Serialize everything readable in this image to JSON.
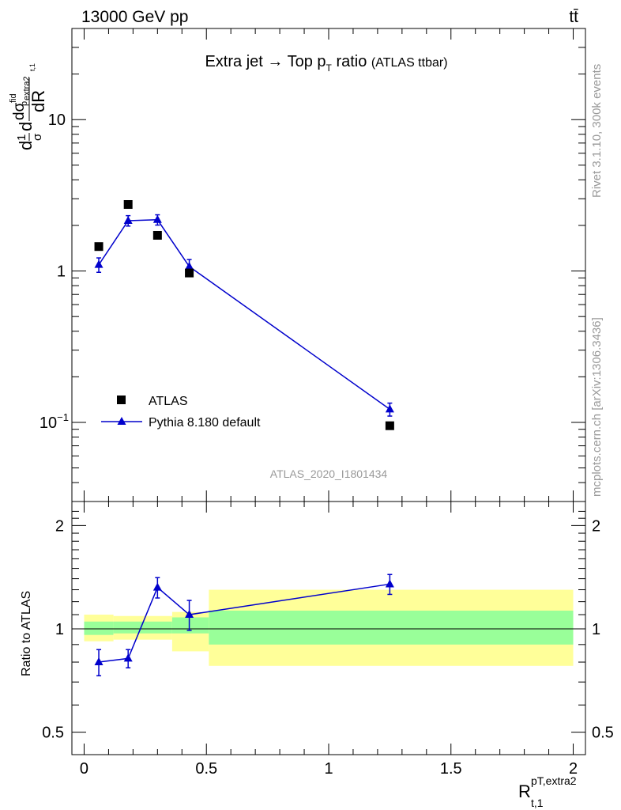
{
  "header": {
    "beam": "13000 GeV pp",
    "process": "tt̄",
    "title_main": "Extra jet",
    "title_arrow": "→",
    "title_top": "Top p",
    "title_sub": "T",
    "title_ratio": "ratio",
    "title_paren": "(ATLAS ttbar)",
    "side_rivet": "Rivet 3.1.10,  300k events",
    "side_mcplots": "mcplots.cern.ch [arXiv:1306.3436]",
    "analysis_id": "ATLAS_2020_I1801434"
  },
  "axes": {
    "ylabel_main": "dσ/dR normalized",
    "ylabel_ratio": "Ratio to ATLAS",
    "xlabel": "R",
    "xlabel_sup": "pT,extra2",
    "xlabel_sub": "t,1"
  },
  "legend": {
    "data_label": "ATLAS",
    "mc_label": "Pythia 8.180 default"
  },
  "colors": {
    "mc": "#0000cc",
    "data": "#000000",
    "band_inner": "#99ff99",
    "band_outer": "#ffff99",
    "ref_text": "#999999"
  },
  "chart_data": [
    {
      "type": "scatter",
      "panel": "main",
      "yscale": "log",
      "ylim": [
        0.03,
        40
      ],
      "xlim": [
        -0.05,
        2.05
      ],
      "yticks": [
        {
          "v": 0.1,
          "base": "10",
          "exp": "−1"
        },
        {
          "v": 1,
          "base": "1",
          "exp": ""
        },
        {
          "v": 10,
          "base": "10",
          "exp": ""
        }
      ],
      "series": [
        {
          "name": "ATLAS",
          "x": [
            0.06,
            0.18,
            0.3,
            0.43,
            1.25
          ],
          "y": [
            1.45,
            2.75,
            1.72,
            0.97,
            0.095
          ]
        },
        {
          "name": "Pythia 8.180 default",
          "x": [
            0.06,
            0.18,
            0.3,
            0.43,
            1.25
          ],
          "y": [
            1.1,
            2.15,
            2.18,
            1.07,
            0.122
          ],
          "err": [
            0.12,
            0.17,
            0.17,
            0.12,
            0.012
          ]
        }
      ]
    },
    {
      "type": "line",
      "panel": "ratio",
      "ylim": [
        0.43,
        2.35
      ],
      "xlim": [
        -0.05,
        2.05
      ],
      "yticks": [
        0.5,
        1,
        2
      ],
      "xticks": [
        0,
        0.5,
        1,
        1.5,
        2
      ],
      "bands": [
        {
          "x0": 0.0,
          "x1": 0.12,
          "inner": [
            0.96,
            1.05
          ],
          "outer": [
            0.92,
            1.1
          ]
        },
        {
          "x0": 0.12,
          "x1": 0.36,
          "inner": [
            0.97,
            1.05
          ],
          "outer": [
            0.93,
            1.09
          ]
        },
        {
          "x0": 0.36,
          "x1": 0.51,
          "inner": [
            0.97,
            1.08
          ],
          "outer": [
            0.86,
            1.12
          ]
        },
        {
          "x0": 0.51,
          "x1": 2.0,
          "inner": [
            0.9,
            1.13
          ],
          "outer": [
            0.78,
            1.3
          ]
        }
      ],
      "series": [
        {
          "name": "Pythia 8.180 default",
          "x": [
            0.06,
            0.18,
            0.3,
            0.43,
            1.25
          ],
          "y": [
            0.8,
            0.82,
            1.32,
            1.1,
            1.35
          ],
          "err": [
            0.07,
            0.05,
            0.09,
            0.11,
            0.09
          ]
        }
      ]
    }
  ]
}
